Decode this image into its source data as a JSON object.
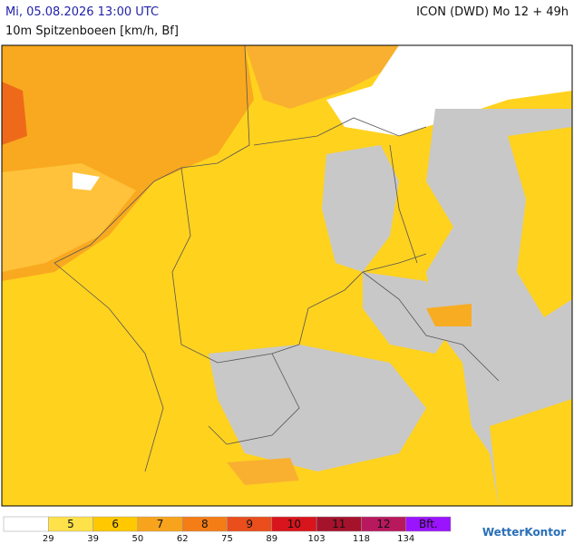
{
  "header": {
    "title": "Mi, 05.08.2026 13:00 UTC",
    "model": "ICON (DWD) Mo 12 + 49h",
    "subtitle": "10m Spitzenboeen [km/h, Bf]"
  },
  "legend": {
    "boxes": [
      {
        "color": "#ffffff"
      },
      {
        "label": "5",
        "color": "#ffe14a"
      },
      {
        "label": "6",
        "color": "#ffc800"
      },
      {
        "label": "7",
        "color": "#f7a41c"
      },
      {
        "label": "8",
        "color": "#f47d16"
      },
      {
        "label": "9",
        "color": "#e94e1c"
      },
      {
        "label": "10",
        "color": "#d8141c"
      },
      {
        "label": "11",
        "color": "#a5122c"
      },
      {
        "label": "12",
        "color": "#b8185e"
      },
      {
        "label": "Bft.",
        "color": "#9a14ff"
      }
    ],
    "thresholds": [
      "29",
      "39",
      "50",
      "62",
      "75",
      "89",
      "103",
      "118",
      "134"
    ]
  },
  "brand": "WetterKontor"
}
